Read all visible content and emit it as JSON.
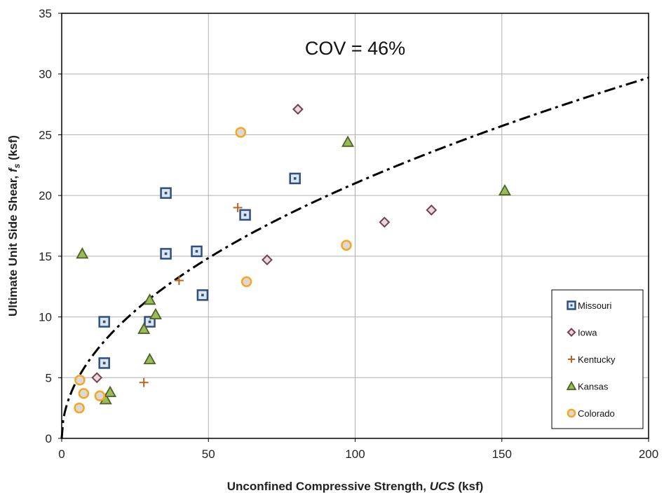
{
  "chart_data": {
    "type": "scatter",
    "xlabel": "Unconfined Compressive Strength, UCS (ksf)",
    "ylabel": "Ultimate Unit Side Shear, fs (ksf)",
    "xlim": [
      0,
      200
    ],
    "ylim": [
      0,
      35
    ],
    "x_ticks": [
      "0",
      "50",
      "100",
      "150",
      "200"
    ],
    "y_ticks": [
      "0",
      "5",
      "10",
      "15",
      "20",
      "25",
      "30",
      "35"
    ],
    "grid": true,
    "legend_position": "bottom-right",
    "annotation": "COV = 46%",
    "series": [
      {
        "name": "Missouri",
        "marker": "square",
        "color": "#2F4F7F",
        "fill": "#DCE6F1",
        "points": [
          [
            14.5,
            9.6
          ],
          [
            14.5,
            6.2
          ],
          [
            30,
            9.6
          ],
          [
            35.5,
            20.2
          ],
          [
            35.5,
            15.2
          ],
          [
            46,
            15.4
          ],
          [
            48,
            11.8
          ],
          [
            62.5,
            18.4
          ],
          [
            79.5,
            21.4
          ]
        ]
      },
      {
        "name": "Iowa",
        "marker": "diamond",
        "color": "#7B3F4A",
        "fill": "#E6D9E3",
        "points": [
          [
            12,
            5.0
          ],
          [
            70,
            14.7
          ],
          [
            80.5,
            27.1
          ],
          [
            110,
            17.8
          ],
          [
            126,
            18.8
          ]
        ]
      },
      {
        "name": "Kentucky",
        "marker": "plus",
        "color": "#B8651F",
        "points": [
          [
            28,
            4.6
          ],
          [
            40,
            13.0
          ],
          [
            60,
            19.0
          ]
        ]
      },
      {
        "name": "Kansas",
        "marker": "triangle",
        "color": "#4F6228",
        "fill": "#9BBB59",
        "points": [
          [
            7,
            15.2
          ],
          [
            15,
            3.2
          ],
          [
            16.5,
            3.8
          ],
          [
            28,
            9.0
          ],
          [
            30,
            6.5
          ],
          [
            30,
            11.4
          ],
          [
            32,
            10.2
          ],
          [
            97.5,
            24.4
          ],
          [
            151,
            20.4
          ]
        ]
      },
      {
        "name": "Colorado",
        "marker": "circle",
        "color": "#F5A623",
        "fill": "#D9D9D9",
        "points": [
          [
            6,
            2.5
          ],
          [
            6.2,
            4.8
          ],
          [
            7.5,
            3.7
          ],
          [
            13,
            3.5
          ],
          [
            61,
            25.2
          ],
          [
            63,
            12.9
          ],
          [
            97,
            15.9
          ]
        ]
      }
    ],
    "trendline": {
      "style": "dash-dot",
      "color": "#000000",
      "formula": "fs = 2.1 * UCS^0.5"
    }
  }
}
